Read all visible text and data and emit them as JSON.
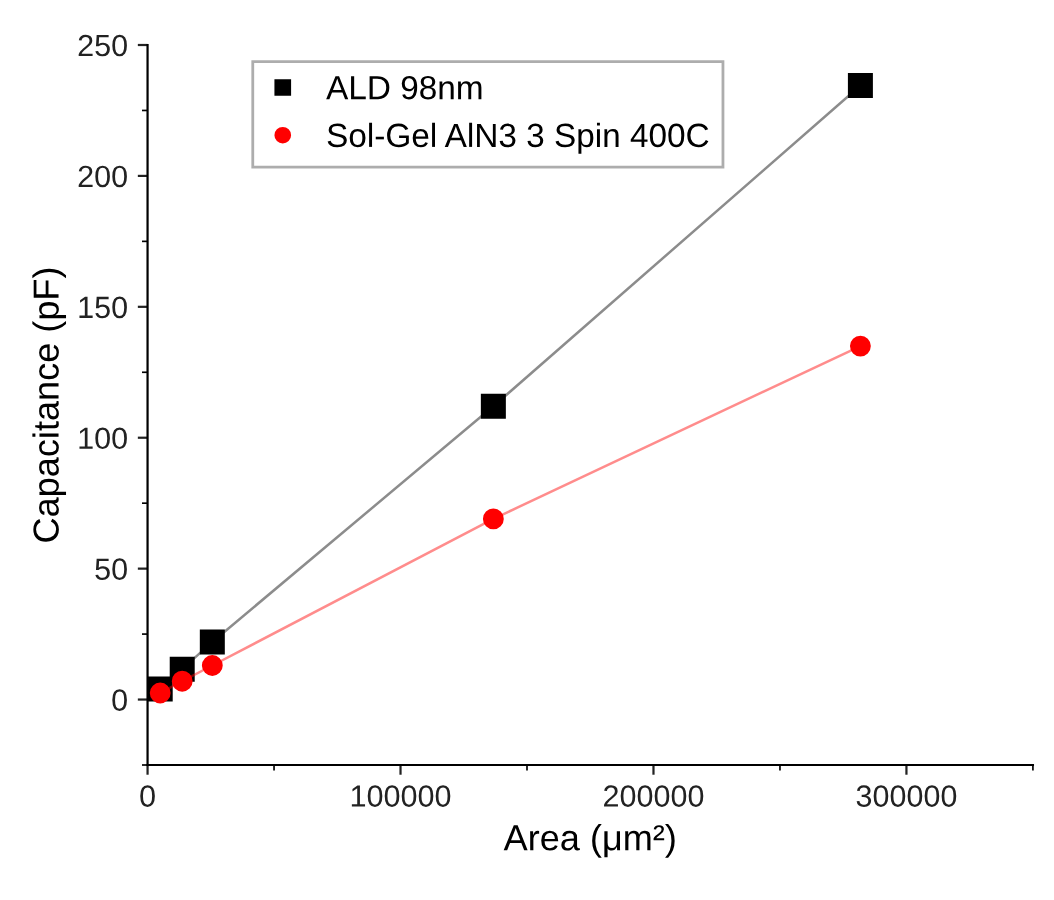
{
  "chart_data": {
    "type": "line",
    "xlabel": "Area (μm²)",
    "ylabel": "Capacitance (pF)",
    "x": [
      5000,
      13700,
      25600,
      136700,
      281800
    ],
    "series": [
      {
        "name": "ALD 98nm",
        "color": "#000000",
        "marker": "square",
        "values": [
          4,
          11.6,
          22,
          112,
          234.5
        ]
      },
      {
        "name": "Sol-Gel AlN3 3 Spin 400C",
        "color": "#ff0000",
        "marker": "circle",
        "values": [
          2.5,
          7,
          13,
          69,
          135
        ]
      }
    ],
    "xlim": [
      0,
      350000
    ],
    "xticks": [
      0,
      100000,
      200000,
      300000
    ],
    "ylim": [
      -25,
      250
    ],
    "yticks": [
      0,
      50,
      100,
      150,
      200,
      250
    ],
    "grid": false,
    "legend": "top left",
    "line_style": "solid"
  }
}
